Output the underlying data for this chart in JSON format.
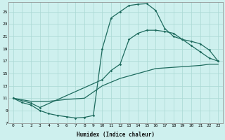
{
  "xlabel": "Humidex (Indice chaleur)",
  "bg_color": "#cef0ee",
  "grid_color": "#aad8d4",
  "line_color": "#1e6b5e",
  "xlim": [
    -0.5,
    23.5
  ],
  "ylim": [
    7,
    26.5
  ],
  "yticks": [
    7,
    9,
    11,
    13,
    15,
    17,
    19,
    21,
    23,
    25
  ],
  "xticks": [
    0,
    1,
    2,
    3,
    4,
    5,
    6,
    7,
    8,
    9,
    10,
    11,
    12,
    13,
    14,
    15,
    16,
    17,
    18,
    19,
    20,
    21,
    22,
    23
  ],
  "curve1_x": [
    0,
    1,
    2,
    3,
    4,
    5,
    6,
    7,
    8,
    9,
    10,
    11,
    12,
    13,
    14,
    15,
    16,
    17,
    18,
    19,
    20,
    21,
    22,
    23
  ],
  "curve1_y": [
    11,
    10.3,
    9.9,
    9.0,
    8.5,
    8.2,
    8.0,
    7.8,
    7.9,
    8.2,
    19.0,
    24.0,
    25.0,
    26.0,
    26.2,
    26.3,
    25.2,
    22.3,
    21.0,
    20.5,
    19.5,
    18.5,
    17.5,
    17.0
  ],
  "curve2_x": [
    0,
    2,
    3,
    10,
    11,
    12,
    13,
    14,
    15,
    16,
    17,
    18,
    19,
    20,
    21,
    22,
    23
  ],
  "curve2_y": [
    11,
    10.2,
    9.5,
    14.0,
    15.5,
    16.5,
    20.5,
    21.5,
    22.0,
    22.0,
    21.8,
    21.5,
    20.5,
    20.2,
    19.8,
    18.8,
    17.0
  ],
  "curve3_x": [
    0,
    2,
    4,
    6,
    8,
    10,
    12,
    14,
    16,
    18,
    20,
    21,
    22,
    23
  ],
  "curve3_y": [
    11,
    10.5,
    10.5,
    10.8,
    11.0,
    13.0,
    14.2,
    15.0,
    15.8,
    16.0,
    16.2,
    16.3,
    16.5,
    16.5
  ]
}
